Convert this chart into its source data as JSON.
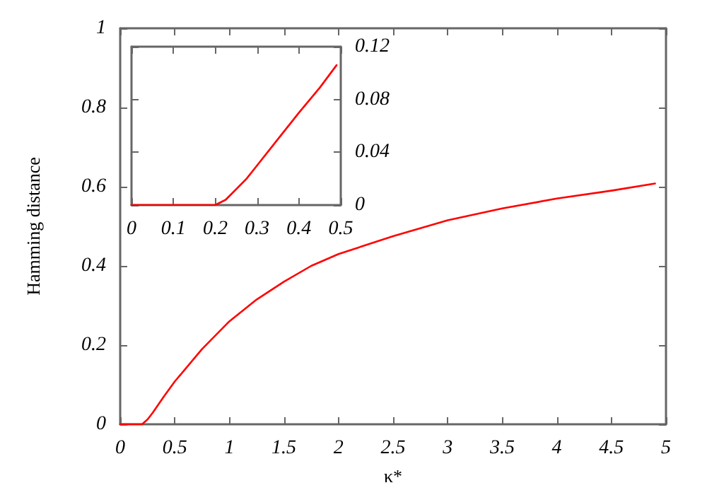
{
  "chart_data": [
    {
      "type": "line",
      "xlabel": "κ*",
      "ylabel": "Hamming distance",
      "xlim": [
        0,
        5
      ],
      "ylim": [
        0,
        1
      ],
      "xticks": [
        0,
        0.5,
        1,
        1.5,
        2,
        2.5,
        3,
        3.5,
        4,
        4.5,
        5
      ],
      "yticks": [
        0,
        0.2,
        0.4,
        0.6,
        0.8,
        1
      ],
      "marker": "none",
      "line_style": "solid",
      "series": [
        {
          "color": "#ff0000",
          "x": [
            0,
            0.1,
            0.2,
            0.25,
            0.3,
            0.4,
            0.5,
            0.75,
            1,
            1.25,
            1.5,
            1.75,
            2,
            2.5,
            3,
            3.5,
            4,
            4.5,
            4.9
          ],
          "values": [
            0,
            0,
            0,
            0.012,
            0.03,
            0.07,
            0.108,
            0.19,
            0.26,
            0.315,
            0.36,
            0.4,
            0.43,
            0.475,
            0.515,
            0.545,
            0.57,
            0.59,
            0.608
          ]
        }
      ]
    },
    {
      "type": "line",
      "xlim": [
        0,
        0.5
      ],
      "ylim": [
        0,
        0.12
      ],
      "xticks": [
        0,
        0.1,
        0.2,
        0.3,
        0.4,
        0.5
      ],
      "yticks": [
        0,
        0.04,
        0.08,
        0.12
      ],
      "marker": "none",
      "line_style": "solid",
      "series": [
        {
          "color": "#ff0000",
          "x": [
            0,
            0.1,
            0.2,
            0.225,
            0.25,
            0.275,
            0.3,
            0.35,
            0.4,
            0.45,
            0.49
          ],
          "values": [
            0,
            0,
            0,
            0.004,
            0.012,
            0.02,
            0.03,
            0.05,
            0.07,
            0.089,
            0.106
          ]
        }
      ]
    }
  ]
}
